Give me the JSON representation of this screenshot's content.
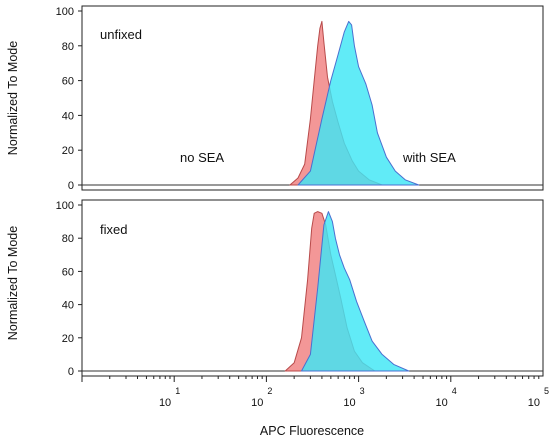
{
  "chart_data": [
    {
      "type": "area",
      "panel_label": "unfixed",
      "ylabel": "Normalized To Mode",
      "xlabel": "",
      "x_scale": "log",
      "xlim": [
        1,
        100000
      ],
      "ylim": [
        0,
        100
      ],
      "y_ticks": [
        "0",
        "20",
        "40",
        "60",
        "80",
        "100"
      ],
      "annotations": [
        {
          "text": "no SEA",
          "anchor_x": 200,
          "anchor_y": 18
        },
        {
          "text": "with SEA",
          "anchor_x": 3000,
          "anchor_y": 18
        }
      ],
      "series": [
        {
          "name": "no SEA",
          "color": "#f08080",
          "points": [
            [
              180,
              0
            ],
            [
              220,
              4
            ],
            [
              260,
              12
            ],
            [
              300,
              38
            ],
            [
              330,
              60
            ],
            [
              360,
              80
            ],
            [
              380,
              90
            ],
            [
              400,
              94
            ],
            [
              420,
              82
            ],
            [
              460,
              62
            ],
            [
              520,
              48
            ],
            [
              600,
              36
            ],
            [
              700,
              24
            ],
            [
              850,
              14
            ],
            [
              1000,
              8
            ],
            [
              1300,
              3
            ],
            [
              1800,
              0
            ]
          ]
        },
        {
          "name": "with SEA",
          "color": "#3ee6f5",
          "points": [
            [
              220,
              0
            ],
            [
              300,
              8
            ],
            [
              400,
              38
            ],
            [
              500,
              60
            ],
            [
              600,
              75
            ],
            [
              700,
              88
            ],
            [
              780,
              94
            ],
            [
              840,
              92
            ],
            [
              900,
              80
            ],
            [
              1000,
              68
            ],
            [
              1200,
              58
            ],
            [
              1400,
              46
            ],
            [
              1600,
              30
            ],
            [
              2000,
              16
            ],
            [
              2500,
              8
            ],
            [
              3200,
              3
            ],
            [
              4500,
              0
            ]
          ]
        }
      ]
    },
    {
      "type": "area",
      "panel_label": "fixed",
      "ylabel": "Normalized To Mode",
      "xlabel": "APC Fluorescence",
      "x_scale": "log",
      "xlim": [
        1,
        100000
      ],
      "ylim": [
        0,
        100
      ],
      "y_ticks": [
        "0",
        "20",
        "40",
        "60",
        "80",
        "100"
      ],
      "x_ticks": [
        {
          "base": "10",
          "exp": "1",
          "value": 10
        },
        {
          "base": "10",
          "exp": "2",
          "value": 100
        },
        {
          "base": "10",
          "exp": "3",
          "value": 1000
        },
        {
          "base": "10",
          "exp": "4",
          "value": 10000
        },
        {
          "base": "10",
          "exp": "5",
          "value": 100000
        }
      ],
      "series": [
        {
          "name": "no SEA",
          "color": "#f08080",
          "points": [
            [
              160,
              0
            ],
            [
              200,
              5
            ],
            [
              240,
              20
            ],
            [
              280,
              55
            ],
            [
              310,
              86
            ],
            [
              330,
              95
            ],
            [
              360,
              96
            ],
            [
              400,
              95
            ],
            [
              440,
              88
            ],
            [
              500,
              70
            ],
            [
              560,
              58
            ],
            [
              640,
              44
            ],
            [
              750,
              26
            ],
            [
              900,
              12
            ],
            [
              1100,
              5
            ],
            [
              1500,
              0
            ]
          ]
        },
        {
          "name": "with SEA",
          "color": "#3ee6f5",
          "points": [
            [
              240,
              0
            ],
            [
              300,
              10
            ],
            [
              360,
              50
            ],
            [
              420,
              88
            ],
            [
              470,
              96
            ],
            [
              520,
              90
            ],
            [
              560,
              80
            ],
            [
              620,
              70
            ],
            [
              700,
              62
            ],
            [
              800,
              55
            ],
            [
              950,
              42
            ],
            [
              1150,
              30
            ],
            [
              1400,
              18
            ],
            [
              1800,
              10
            ],
            [
              2400,
              4
            ],
            [
              3500,
              0
            ]
          ]
        }
      ]
    }
  ]
}
